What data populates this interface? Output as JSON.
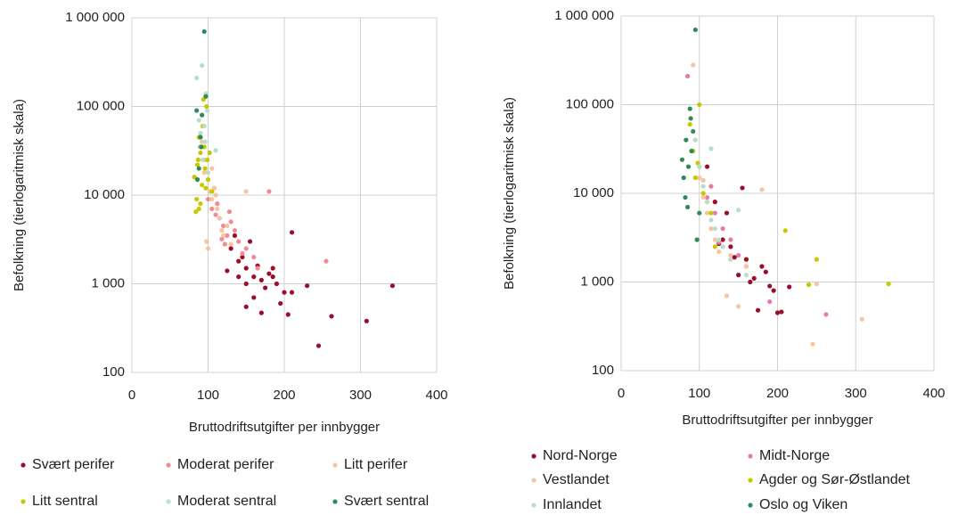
{
  "chart_data": [
    {
      "type": "scatter",
      "xlabel": "Bruttodriftsutgifter per innbygger",
      "ylabel": "Befolkning (tierlogaritmisk skala)",
      "xlim": [
        0,
        400
      ],
      "ylim": [
        100,
        1000000
      ],
      "log_scale_y": true,
      "grid": true,
      "legend": "bottom",
      "xticks": [
        0,
        100,
        200,
        300,
        400
      ],
      "yticks": [
        100,
        {
          "value": 1000,
          "label": "1 000"
        },
        {
          "value": 10000,
          "label": "10 000"
        },
        {
          "value": 100000,
          "label": "100 000"
        },
        {
          "value": 1000000,
          "label": "1 000 000"
        }
      ],
      "series": [
        {
          "name": "Svært perifer",
          "color": "#9b0d2a",
          "x": [
            130,
            140,
            150,
            160,
            170,
            180,
            190,
            200,
            210,
            145,
            155,
            165,
            175,
            185,
            135,
            125,
            150,
            160,
            195,
            205,
            245,
            262,
            308,
            342,
            210,
            170,
            150,
            230,
            185,
            140
          ],
          "values": [
            2500,
            1800,
            1500,
            1200,
            1100,
            1300,
            1000,
            800,
            3800,
            2000,
            3000,
            1600,
            900,
            1500,
            3500,
            1400,
            550,
            700,
            600,
            450,
            200,
            430,
            380,
            950,
            800,
            470,
            1000,
            950,
            1200,
            1200
          ]
        },
        {
          "name": "Moderat perifer",
          "color": "#f08c96",
          "x": [
            100,
            105,
            110,
            115,
            120,
            125,
            130,
            135,
            140,
            150,
            160,
            180,
            255,
            112,
            118,
            122,
            128,
            108,
            145,
            165
          ],
          "values": [
            9000,
            7000,
            6000,
            5500,
            4500,
            3500,
            5000,
            4000,
            3000,
            2500,
            2000,
            11000,
            1800,
            8000,
            3200,
            2800,
            6500,
            12000,
            2200,
            1500
          ]
        },
        {
          "name": "Litt perifer",
          "color": "#f8c4a0",
          "x": [
            92,
            95,
            98,
            100,
            102,
            105,
            108,
            110,
            112,
            115,
            118,
            120,
            125,
            130,
            150,
            100,
            95,
            105
          ],
          "values": [
            40000,
            25000,
            3000,
            15000,
            11000,
            9000,
            12000,
            10000,
            7000,
            5500,
            4000,
            3500,
            4500,
            2800,
            11000,
            2500,
            18000,
            20000
          ]
        },
        {
          "name": "Litt sentral",
          "color": "#c8c800",
          "x": [
            82,
            85,
            87,
            88,
            90,
            92,
            93,
            95,
            96,
            98,
            100,
            102,
            105,
            88,
            90,
            94,
            97,
            84,
            86,
            99
          ],
          "values": [
            16000,
            9000,
            25000,
            7000,
            30000,
            13000,
            60000,
            35000,
            20000,
            100000,
            15000,
            30000,
            11000,
            45000,
            8000,
            120000,
            12000,
            6500,
            22000,
            25000
          ]
        },
        {
          "name": "Moderat sentral",
          "color": "#b8e0c8",
          "x": [
            85,
            88,
            90,
            92,
            95,
            97,
            100,
            110,
            96,
            93,
            99,
            89
          ],
          "values": [
            210000,
            70000,
            50000,
            290000,
            60000,
            140000,
            18000,
            32000,
            40000,
            25000,
            90000,
            35000
          ]
        },
        {
          "name": "Svært sentral",
          "color": "#2e8b57",
          "x": [
            85,
            88,
            90,
            92,
            95,
            97,
            86,
            91
          ],
          "values": [
            90000,
            20000,
            45000,
            80000,
            700000,
            130000,
            15000,
            35000
          ]
        }
      ]
    },
    {
      "type": "scatter",
      "xlabel": "Bruttodriftsutgifter per innbygger",
      "ylabel": "Befolkning (tierlogaritmisk skala)",
      "xlim": [
        0,
        400
      ],
      "ylim": [
        100,
        1000000
      ],
      "log_scale_y": true,
      "grid": true,
      "legend": "bottom",
      "xticks": [
        0,
        100,
        200,
        300,
        400
      ],
      "yticks": [
        100,
        {
          "value": 1000,
          "label": "1 000"
        },
        {
          "value": 10000,
          "label": "10 000"
        },
        {
          "value": 100000,
          "label": "100 000"
        },
        {
          "value": 1000000,
          "label": "1 000 000"
        }
      ],
      "series": [
        {
          "name": "Nord-Norge",
          "color": "#9b0d2a",
          "x": [
            110,
            120,
            130,
            140,
            150,
            160,
            170,
            180,
            190,
            200,
            155,
            165,
            135,
            125,
            145,
            185,
            195,
            205,
            215,
            175
          ],
          "values": [
            20000,
            8000,
            3000,
            2500,
            1200,
            1800,
            1100,
            1500,
            900,
            450,
            11500,
            1000,
            6000,
            2700,
            1900,
            1300,
            800,
            460,
            880,
            480
          ]
        },
        {
          "name": "Midt-Norge",
          "color": "#e87aa8",
          "x": [
            85,
            100,
            110,
            120,
            130,
            140,
            150,
            160,
            262,
            190,
            115,
            125
          ],
          "values": [
            210000,
            20000,
            9000,
            6000,
            4000,
            3000,
            2000,
            1500,
            430,
            600,
            12000,
            2800
          ]
        },
        {
          "name": "Vestlandet",
          "color": "#f8c4a0",
          "x": [
            92,
            95,
            100,
            105,
            110,
            115,
            120,
            130,
            140,
            150,
            160,
            180,
            245,
            250,
            308,
            125,
            135,
            105
          ],
          "values": [
            280000,
            40000,
            15000,
            9000,
            6000,
            4000,
            3000,
            2500,
            2000,
            530,
            1500,
            11000,
            200,
            950,
            380,
            2200,
            700,
            14000
          ]
        },
        {
          "name": "Agder og Sør-Østlandet",
          "color": "#c8c800",
          "x": [
            88,
            92,
            95,
            100,
            105,
            110,
            115,
            210,
            250,
            342,
            240,
            120,
            98
          ],
          "values": [
            60000,
            30000,
            15000,
            100000,
            10000,
            8000,
            6000,
            3800,
            1800,
            950,
            930,
            2500,
            22000
          ]
        },
        {
          "name": "Innlandet",
          "color": "#b8e0c8",
          "x": [
            95,
            100,
            105,
            110,
            115,
            120,
            125,
            130,
            140,
            150,
            160,
            115
          ],
          "values": [
            40000,
            20000,
            12000,
            8000,
            5000,
            4000,
            3000,
            2500,
            1800,
            6500,
            1200,
            32000
          ]
        },
        {
          "name": "Oslo og Viken",
          "color": "#2e8b57",
          "x": [
            78,
            80,
            82,
            85,
            88,
            90,
            92,
            95,
            97,
            100,
            86,
            89,
            83
          ],
          "values": [
            24000,
            15000,
            9000,
            7000,
            90000,
            30000,
            50000,
            700000,
            3000,
            6000,
            20000,
            70000,
            40000
          ]
        }
      ]
    }
  ]
}
